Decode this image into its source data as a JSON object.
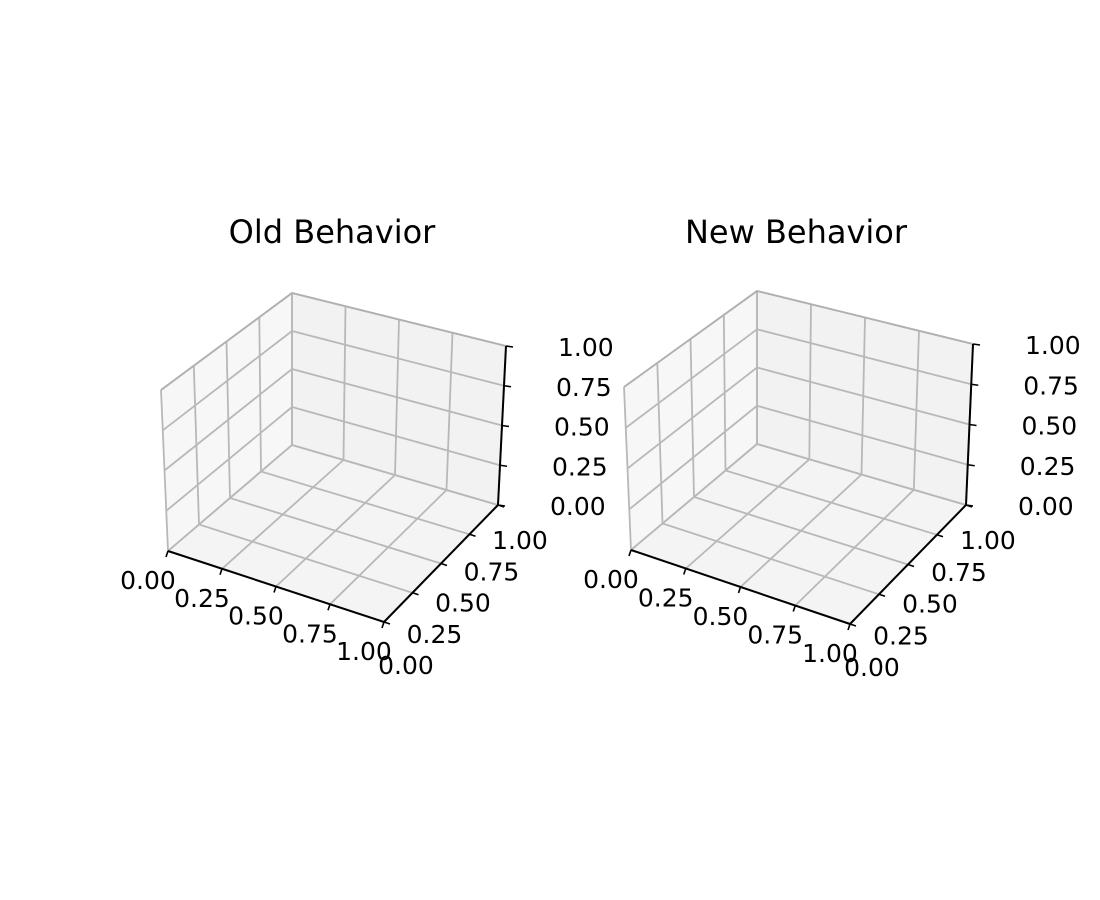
{
  "chart_data": [
    {
      "type": "3d-axes",
      "title": "Old Behavior",
      "xlabel": "",
      "ylabel": "",
      "zlabel": "",
      "xlim": [
        0,
        1
      ],
      "ylim": [
        0,
        1
      ],
      "zlim": [
        0,
        1
      ],
      "xticks": [
        "0.00",
        "0.25",
        "0.50",
        "0.75",
        "1.00"
      ],
      "yticks": [
        "0.00",
        "0.25",
        "0.50",
        "0.75",
        "1.00"
      ],
      "zticks": [
        "0.00",
        "0.25",
        "0.50",
        "0.75",
        "1.00"
      ],
      "grid": true,
      "series": []
    },
    {
      "type": "3d-axes",
      "title": "New Behavior",
      "xlabel": "",
      "ylabel": "",
      "zlabel": "",
      "xlim": [
        0,
        1
      ],
      "ylim": [
        0,
        1
      ],
      "zlim": [
        0,
        1
      ],
      "xticks": [
        "0.00",
        "0.25",
        "0.50",
        "0.75",
        "1.00"
      ],
      "yticks": [
        "0.00",
        "0.25",
        "0.50",
        "0.75",
        "1.00"
      ],
      "zticks": [
        "0.00",
        "0.25",
        "0.50",
        "0.75",
        "1.00"
      ],
      "grid": true,
      "series": []
    }
  ]
}
